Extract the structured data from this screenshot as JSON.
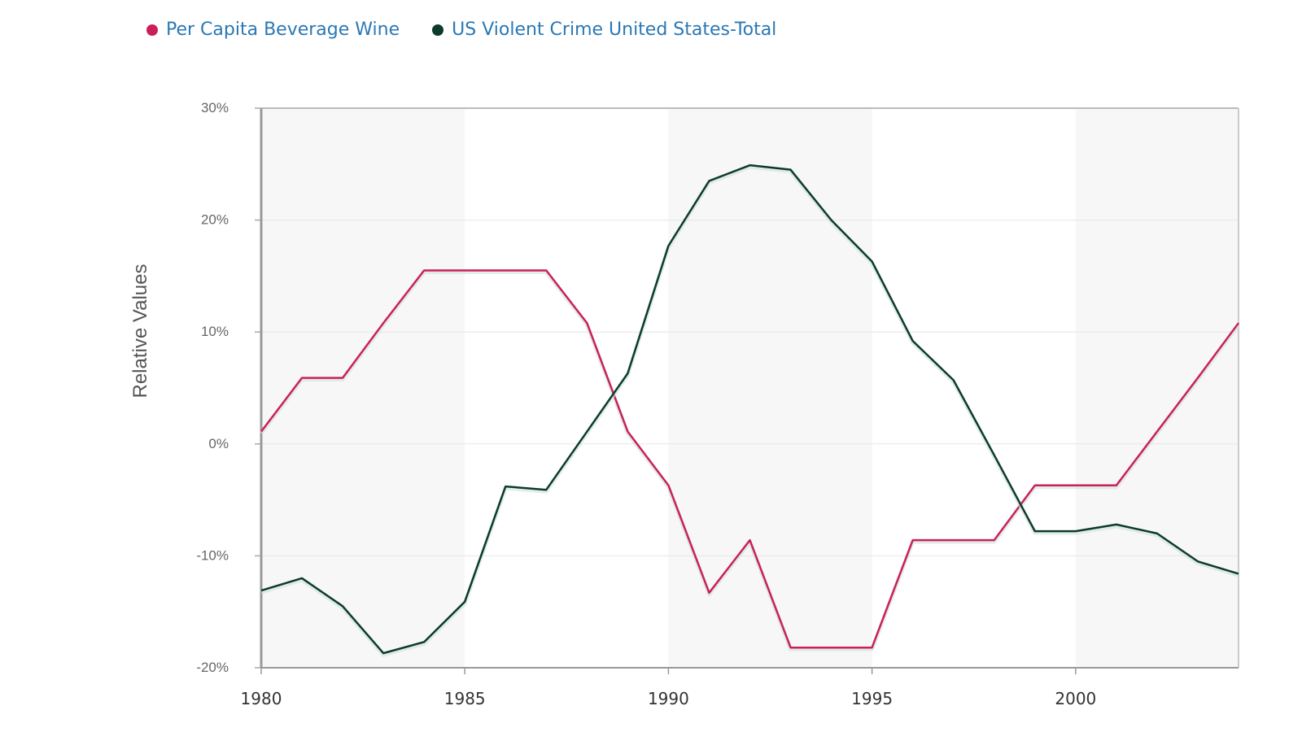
{
  "chart_data": {
    "type": "line",
    "title": "",
    "xlabel": "",
    "ylabel": "Relative Values",
    "x": [
      1980,
      1981,
      1982,
      1983,
      1984,
      1985,
      1986,
      1987,
      1988,
      1989,
      1990,
      1991,
      1992,
      1993,
      1994,
      1995,
      1996,
      1997,
      1998,
      1999,
      2000,
      2001,
      2002,
      2003,
      2004
    ],
    "xlim": [
      1980,
      2004
    ],
    "ylim": [
      -20,
      30
    ],
    "x_ticks": [
      "1980",
      "1985",
      "1990",
      "1995",
      "2000"
    ],
    "y_ticks": [
      "30%",
      "20%",
      "10%",
      "0%",
      "-10%",
      "-20%"
    ],
    "legend_position": "top-left",
    "grid": true,
    "series": [
      {
        "name": "Per Capita Beverage Wine",
        "color": "#cc1f5a",
        "values": [
          1.1,
          5.9,
          5.9,
          10.8,
          15.5,
          15.5,
          15.5,
          15.5,
          10.8,
          1.1,
          -3.7,
          -13.3,
          -8.6,
          -18.2,
          -18.2,
          -18.2,
          -8.6,
          -8.6,
          -8.6,
          -3.7,
          -3.7,
          -3.7,
          1.1,
          5.9,
          10.8
        ]
      },
      {
        "name": "US Violent Crime United States-Total",
        "color": "#0d3b2a",
        "values": [
          -13.1,
          -12.0,
          -14.5,
          -18.7,
          -17.7,
          -14.1,
          -3.8,
          -4.1,
          1.1,
          6.3,
          17.7,
          23.5,
          24.9,
          24.5,
          20.0,
          16.3,
          9.2,
          5.7,
          -1.0,
          -7.8,
          -7.8,
          -7.2,
          -8.0,
          -10.5,
          -11.6
        ]
      }
    ]
  }
}
